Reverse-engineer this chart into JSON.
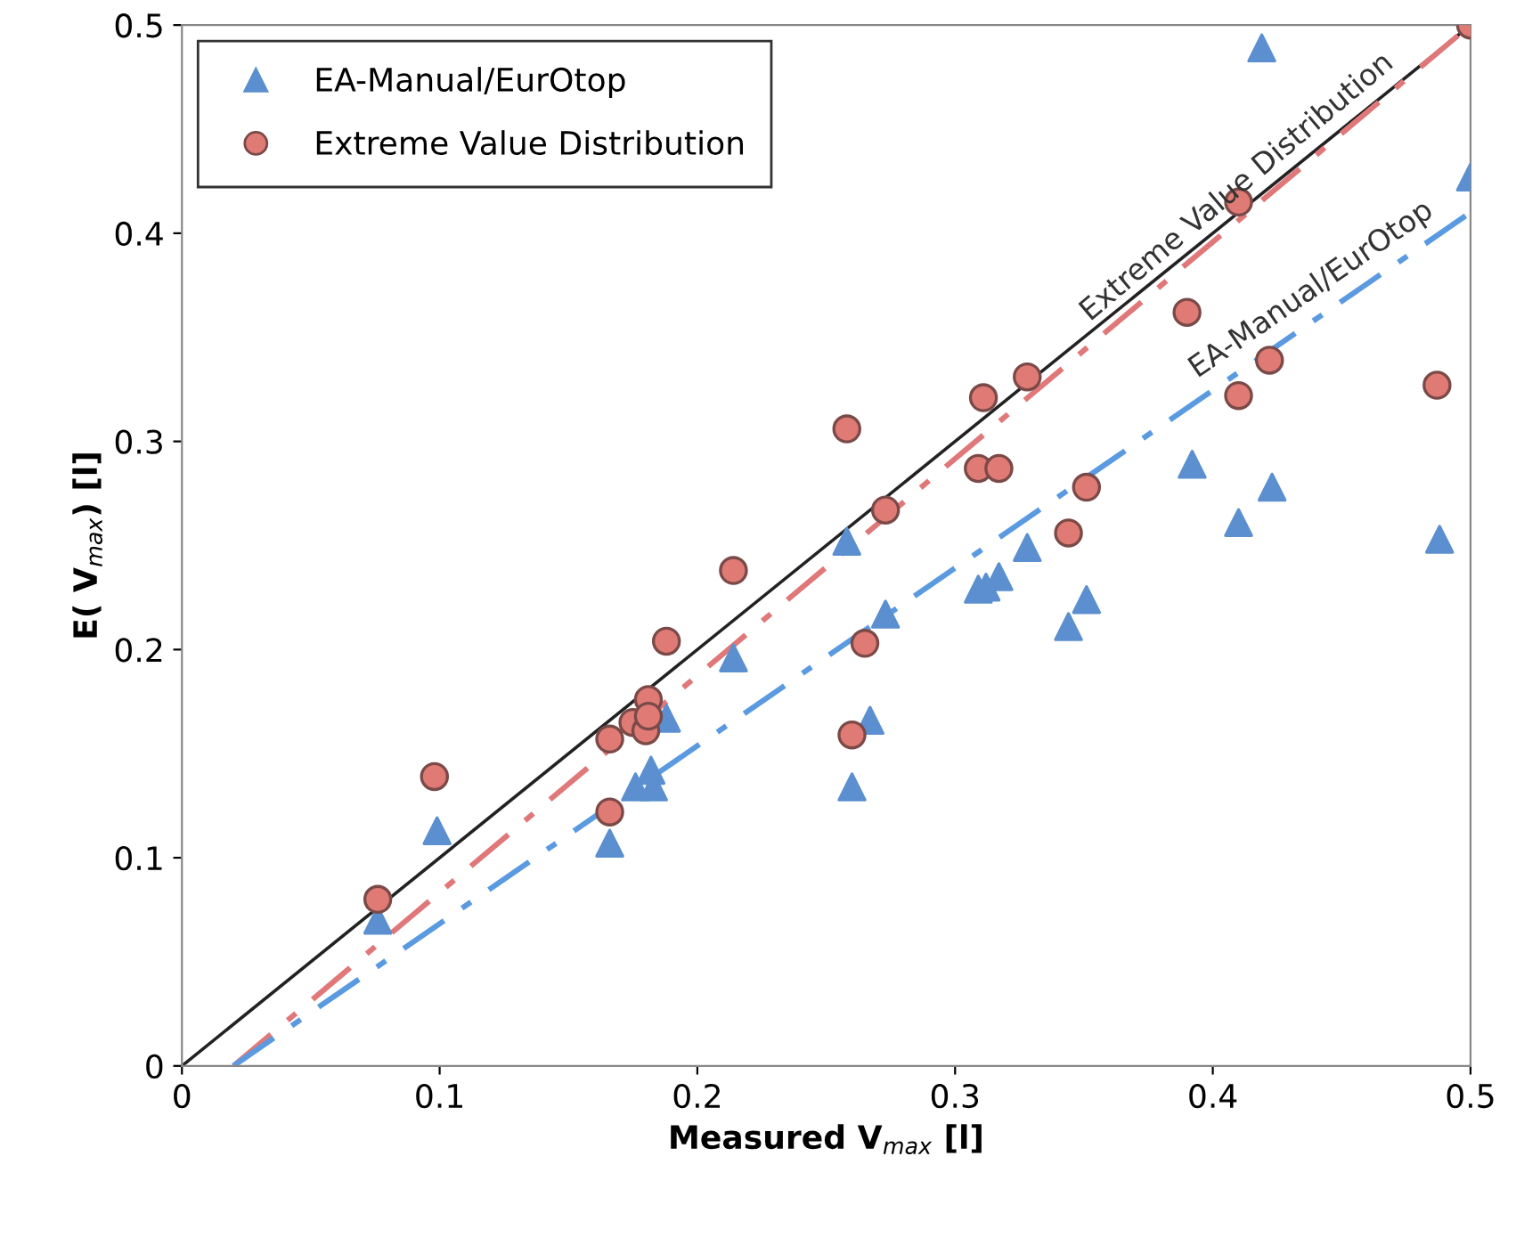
{
  "chart_data": {
    "type": "scatter",
    "xlabel": "Measured V$_{max}$ [l]",
    "ylabel": "E( V$_{max}$) [l]",
    "xlim": [
      0,
      0.5
    ],
    "ylim": [
      0,
      0.5
    ],
    "xticks": [
      {
        "value": 0,
        "label": "0"
      },
      0.1,
      0.2,
      0.3,
      0.4,
      0.5
    ],
    "yticks": [
      {
        "value": 0,
        "label": "0"
      },
      0.1,
      0.2,
      0.3,
      0.4,
      0.5
    ],
    "grid": false,
    "legend": "top left",
    "series": [
      {
        "name": "EA-Manual/EurOtop",
        "marker": "triangle",
        "color": "#5b8fd0",
        "x": [
          0.076,
          0.099,
          0.166,
          0.176,
          0.182,
          0.183,
          0.188,
          0.214,
          0.258,
          0.26,
          0.267,
          0.273,
          0.309,
          0.312,
          0.317,
          0.328,
          0.344,
          0.351,
          0.392,
          0.41,
          0.419,
          0.423,
          0.488,
          0.5
        ],
        "values": [
          0.07,
          0.113,
          0.107,
          0.134,
          0.142,
          0.134,
          0.167,
          0.196,
          0.252,
          0.134,
          0.166,
          0.217,
          0.229,
          0.23,
          0.235,
          0.249,
          0.211,
          0.224,
          0.289,
          0.261,
          0.489,
          0.278,
          0.253,
          0.427
        ]
      },
      {
        "name": "Extreme Value Distribution",
        "marker": "circle",
        "color": "#e07a74",
        "x": [
          0.076,
          0.098,
          0.166,
          0.166,
          0.175,
          0.18,
          0.181,
          0.181,
          0.188,
          0.214,
          0.258,
          0.26,
          0.265,
          0.273,
          0.309,
          0.317,
          0.311,
          0.328,
          0.344,
          0.351,
          0.39,
          0.41,
          0.41,
          0.422,
          0.487,
          0.5
        ],
        "values": [
          0.08,
          0.139,
          0.122,
          0.157,
          0.165,
          0.161,
          0.176,
          0.168,
          0.204,
          0.238,
          0.306,
          0.159,
          0.203,
          0.267,
          0.287,
          0.287,
          0.321,
          0.331,
          0.256,
          0.278,
          0.362,
          0.415,
          0.322,
          0.339,
          0.327,
          0.5
        ]
      },
      {
        "type": "line",
        "line_style": "solid",
        "marker": "none",
        "color": "#222222",
        "x": [
          0,
          0.5
        ],
        "values": [
          0,
          0.5
        ]
      },
      {
        "type": "line",
        "line_style": "dashed",
        "marker": "none",
        "color": "#e0787a",
        "x": [
          0.02,
          0.5
        ],
        "values": [
          0,
          0.5
        ]
      },
      {
        "type": "line",
        "line_style": "dashed",
        "marker": "none",
        "color": "#5a9ae0",
        "x": [
          0.02,
          0.5
        ],
        "values": [
          0,
          0.41
        ]
      }
    ],
    "annotations": [
      "Extreme Value Distribution",
      "EA-Manual/EurOtop"
    ]
  }
}
